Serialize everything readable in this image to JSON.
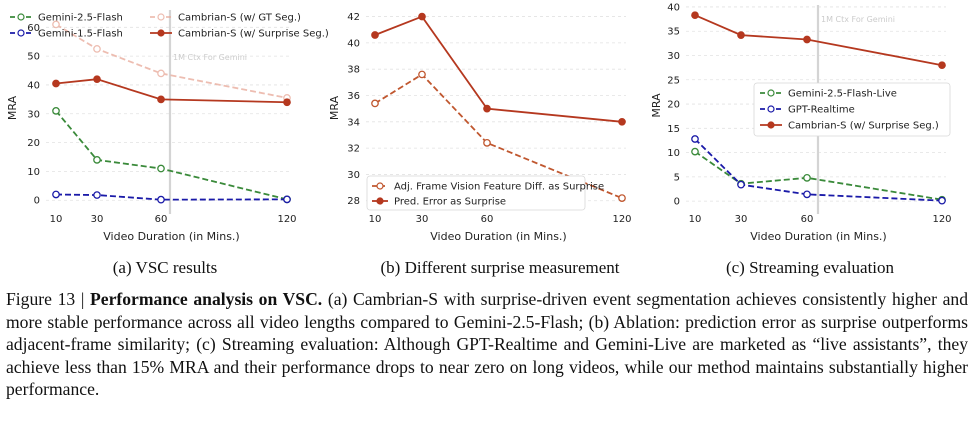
{
  "subcaptions": [
    "(a) VSC results",
    "(b) Different surprise measurement",
    "(c) Streaming evaluation"
  ],
  "caption": {
    "prefix": "Figure 13 | ",
    "title": "Performance analysis on VSC.",
    "body": " (a) Cambrian-S with surprise-driven event segmentation achieves consistently higher and more stable performance across all video lengths compared to Gemini-2.5-Flash; (b) Ablation: prediction error as surprise outperforms adjacent-frame similarity; (c) Streaming evaluation: Although GPT-Realtime and Gemini-Live are marketed as “live assistants”, they achieve less than 15% MRA and their performance drops to near zero on long videos, while our method maintains substantially higher performance."
  },
  "chart_data": [
    {
      "type": "line",
      "xlabel": "Video Duration (in Mins.)",
      "ylabel": "MRA",
      "x": [
        10,
        30,
        60,
        120
      ],
      "x_ticks": [
        "10",
        "30",
        "60",
        "120"
      ],
      "y_ticks": [
        "0",
        "10",
        "20",
        "30",
        "40",
        "50",
        "60"
      ],
      "ylim": [
        -2,
        66
      ],
      "annotation": {
        "text": "1M Ctx For Gemini",
        "x": 64
      },
      "legend": "top (2 columns)",
      "series": [
        {
          "name": "Gemini-2.5-Flash",
          "values": [
            31,
            14,
            11,
            0.3
          ],
          "color": "#3a8a3a",
          "style": "dashed",
          "marker": "open",
          "opacity": 1
        },
        {
          "name": "Gemini-1.5-Flash",
          "values": [
            2,
            1.8,
            0.2,
            0.3
          ],
          "color": "#1a1aa8",
          "style": "dashed",
          "marker": "open",
          "opacity": 1
        },
        {
          "name": "Cambrian-S (w/ GT Seg.)",
          "values": [
            61,
            52.5,
            44,
            35.5
          ],
          "color": "#e8a898",
          "style": "dashed",
          "marker": "open",
          "opacity": 0.75
        },
        {
          "name": "Cambrian-S (w/ Surprise Seg.)",
          "values": [
            40.5,
            42,
            35,
            34
          ],
          "color": "#b5381f",
          "style": "solid",
          "marker": "filled",
          "opacity": 1
        }
      ]
    },
    {
      "type": "line",
      "xlabel": "Video Duration (in Mins.)",
      "ylabel": "MRA",
      "x": [
        10,
        30,
        60,
        120
      ],
      "x_ticks": [
        "10",
        "30",
        "60",
        "120"
      ],
      "y_ticks": [
        "28",
        "30",
        "32",
        "34",
        "36",
        "38",
        "40",
        "42"
      ],
      "ylim": [
        27.6,
        42.5
      ],
      "legend": "bottom-left",
      "series": [
        {
          "name": "Adj. Frame Vision Feature Diff. as Surprise",
          "values": [
            35.4,
            37.6,
            32.4,
            28.2
          ],
          "color": "#c0572f",
          "style": "dashed",
          "marker": "open",
          "opacity": 1
        },
        {
          "name": "Pred. Error as Surprise",
          "values": [
            40.6,
            42.0,
            35.0,
            34.0
          ],
          "color": "#b5381f",
          "style": "solid",
          "marker": "filled",
          "opacity": 1
        }
      ]
    },
    {
      "type": "line",
      "xlabel": "Video Duration (in Mins.)",
      "ylabel": "MRA",
      "x": [
        10,
        30,
        60,
        120
      ],
      "x_ticks": [
        "10",
        "30",
        "60",
        "120"
      ],
      "y_ticks": [
        "0",
        "5",
        "10",
        "15",
        "20",
        "25",
        "30",
        "35",
        "40"
      ],
      "ylim": [
        -1,
        40.4
      ],
      "annotation": {
        "text": "1M Ctx For Gemini",
        "x": 64
      },
      "legend": "center-right",
      "series": [
        {
          "name": "Gemini-2.5-Flash-Live",
          "values": [
            10.2,
            3.6,
            4.8,
            0.3
          ],
          "color": "#3a8a3a",
          "style": "dashed",
          "marker": "open",
          "opacity": 1
        },
        {
          "name": "GPT-Realtime",
          "values": [
            12.8,
            3.4,
            1.4,
            0.1
          ],
          "color": "#1a1aa8",
          "style": "dashed",
          "marker": "open",
          "opacity": 1
        },
        {
          "name": "Cambrian-S (w/ Surprise Seg.)",
          "values": [
            38.3,
            34.2,
            33.3,
            28.0
          ],
          "color": "#b5381f",
          "style": "solid",
          "marker": "filled",
          "opacity": 1
        }
      ]
    }
  ]
}
